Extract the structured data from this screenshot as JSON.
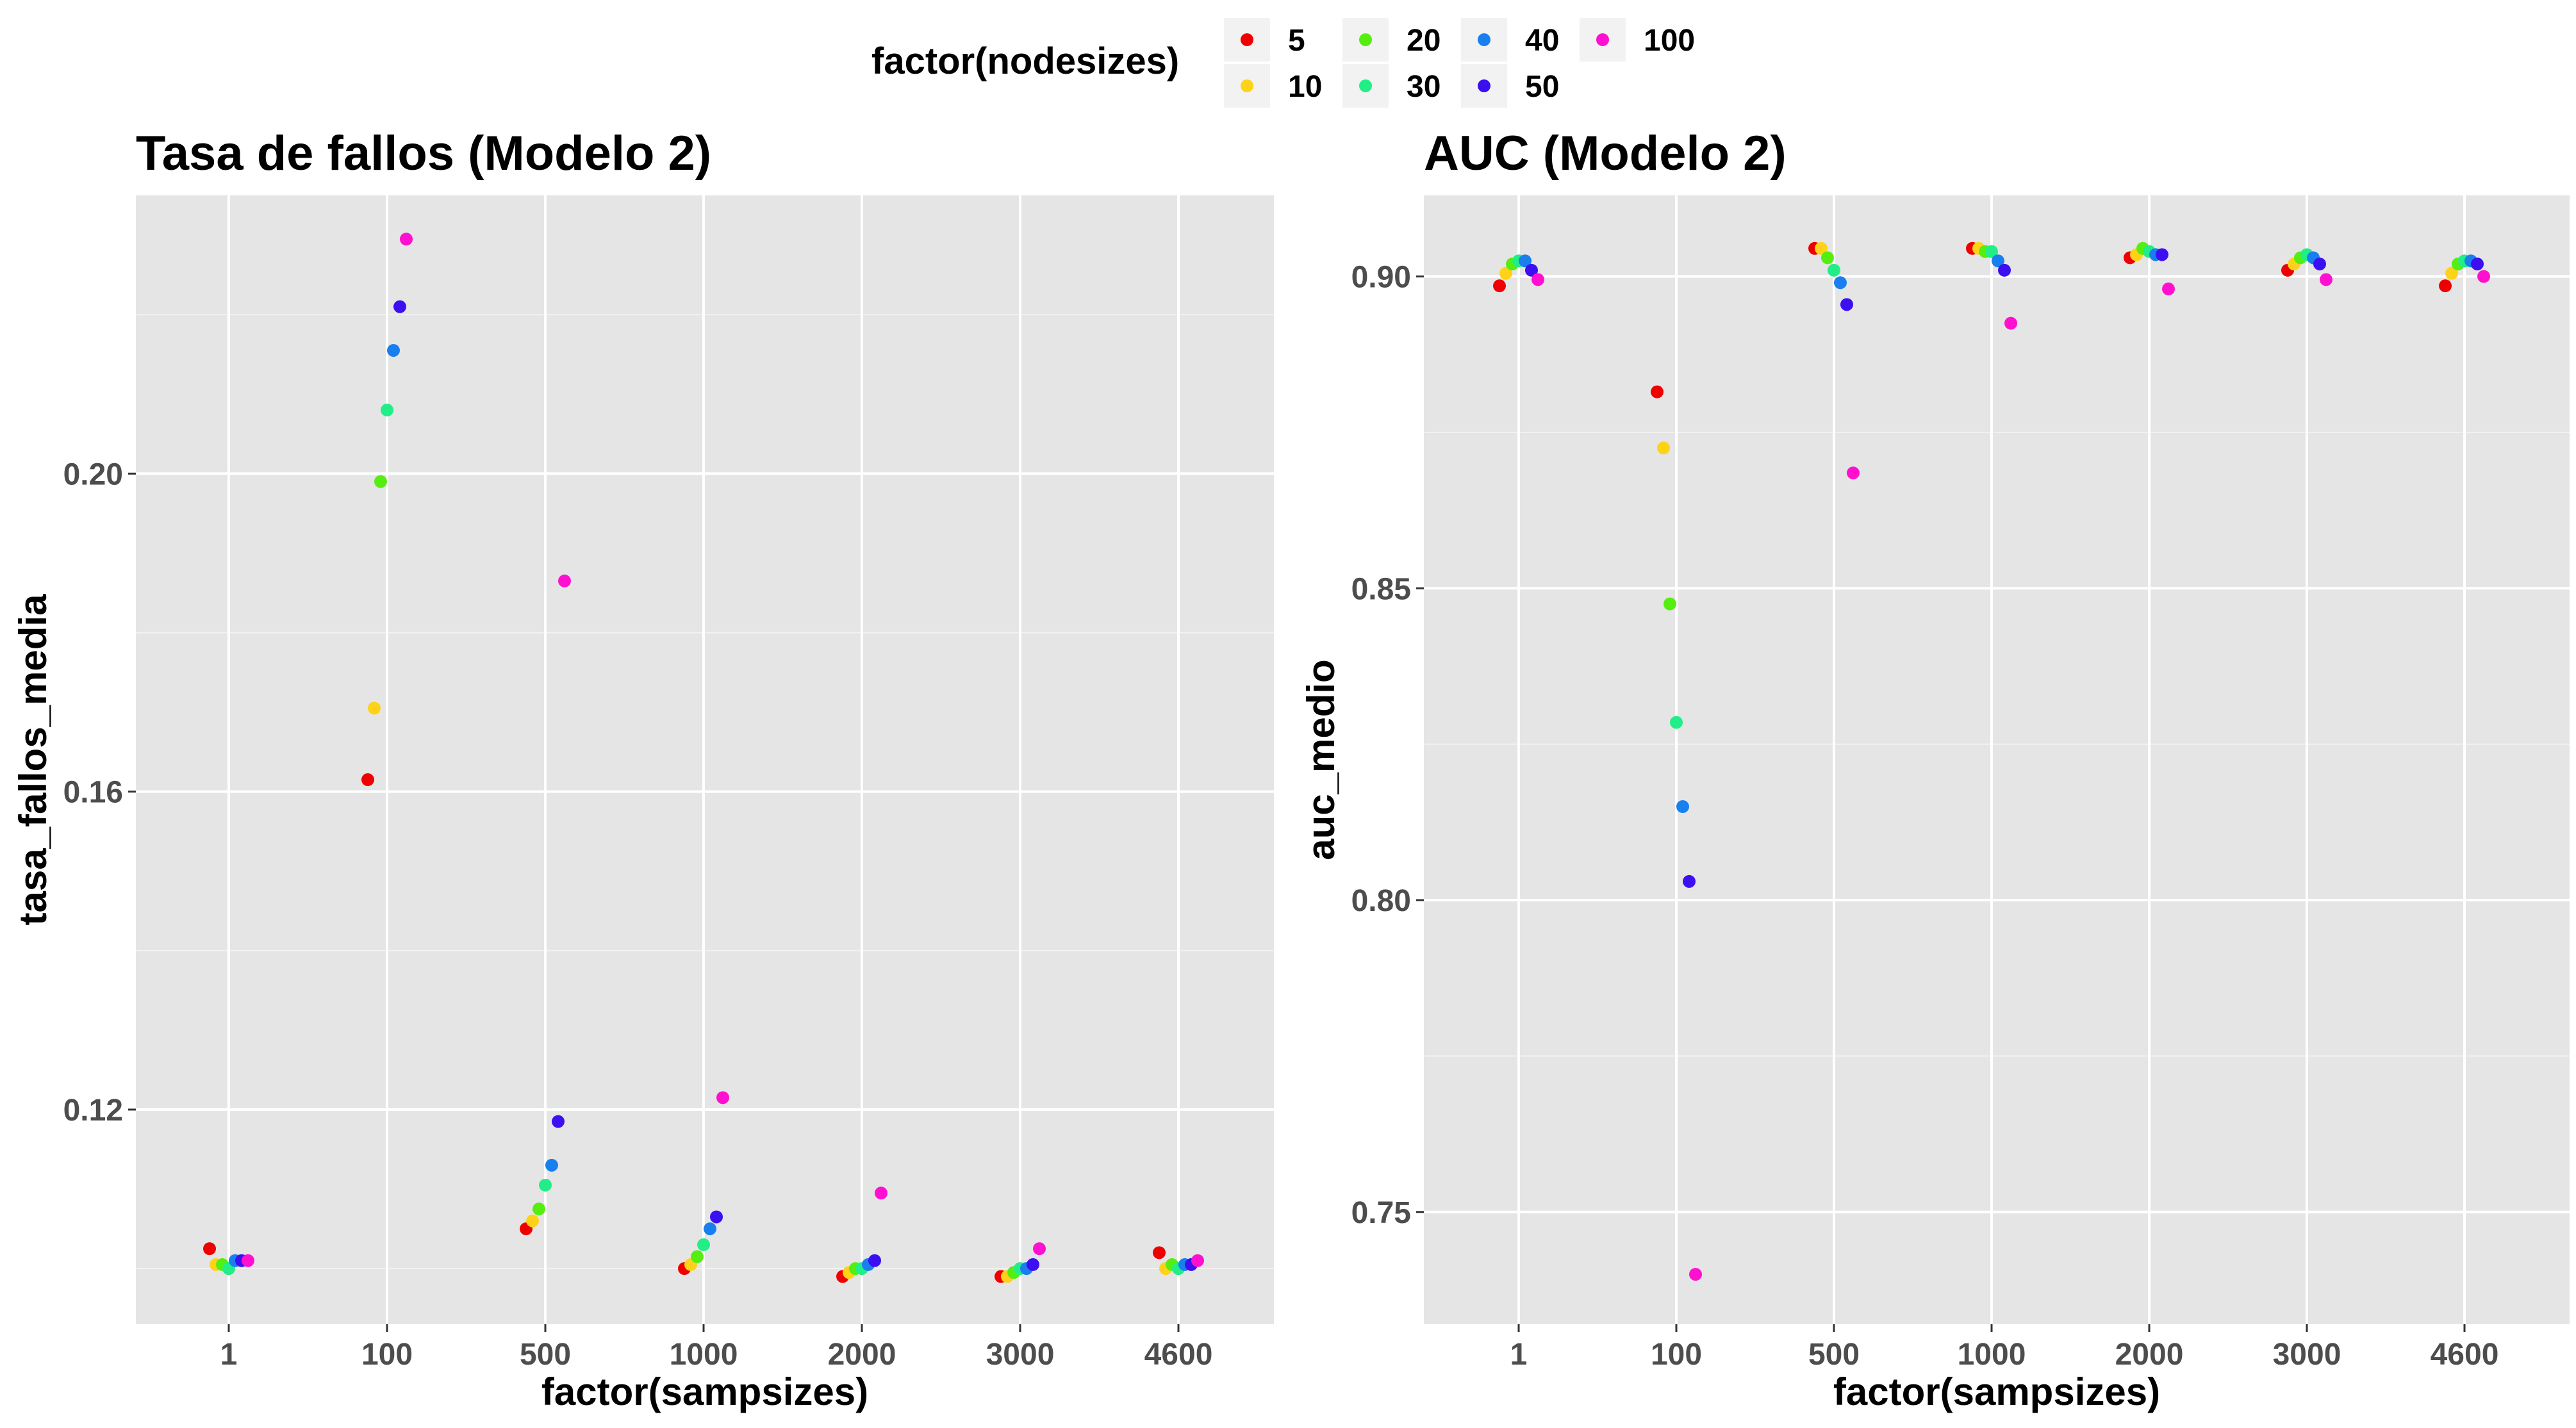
{
  "legend": {
    "title": "factor(nodesizes)",
    "items": [
      {
        "label": "5",
        "color": "#ee0000"
      },
      {
        "label": "10",
        "color": "#ffd21a"
      },
      {
        "label": "20",
        "color": "#55ee10"
      },
      {
        "label": "30",
        "color": "#22ee88"
      },
      {
        "label": "40",
        "color": "#1a7fee"
      },
      {
        "label": "50",
        "color": "#3c0ff0"
      },
      {
        "label": "100",
        "color": "#ff10d0"
      }
    ]
  },
  "chart_data": [
    {
      "type": "scatter",
      "title": "Tasa de fallos (Modelo 2)",
      "xlabel": "factor(sampsizes)",
      "ylabel": "tasa_fallos_media",
      "categories": [
        "1",
        "100",
        "500",
        "1000",
        "2000",
        "3000",
        "4600"
      ],
      "yticks": [
        0.12,
        0.16,
        0.2
      ],
      "ylim": [
        0.093,
        0.235
      ],
      "grid": true,
      "series": [
        {
          "name": "5",
          "values": [
            0.1025,
            0.1615,
            0.105,
            0.1,
            0.099,
            0.099,
            0.102
          ]
        },
        {
          "name": "10",
          "values": [
            0.1005,
            0.1705,
            0.106,
            0.1005,
            0.0995,
            0.099,
            0.1
          ]
        },
        {
          "name": "20",
          "values": [
            0.1005,
            0.199,
            0.1075,
            0.1015,
            0.1,
            0.0995,
            0.1005
          ]
        },
        {
          "name": "30",
          "values": [
            0.1,
            0.208,
            0.1105,
            0.103,
            0.1,
            0.1,
            0.1
          ]
        },
        {
          "name": "40",
          "values": [
            0.101,
            0.2155,
            0.113,
            0.105,
            0.1005,
            0.1,
            0.1005
          ]
        },
        {
          "name": "50",
          "values": [
            0.101,
            0.221,
            0.1185,
            0.1065,
            0.101,
            0.1005,
            0.1005
          ]
        },
        {
          "name": "100",
          "values": [
            0.101,
            0.2295,
            0.1865,
            0.1215,
            0.1095,
            0.1025,
            0.101
          ]
        }
      ]
    },
    {
      "type": "scatter",
      "title": "AUC (Modelo 2)",
      "xlabel": "factor(sampsizes)",
      "ylabel": "auc_medio",
      "categories": [
        "1",
        "100",
        "500",
        "1000",
        "2000",
        "3000",
        "4600"
      ],
      "yticks": [
        0.75,
        0.8,
        0.85,
        0.9
      ],
      "ylim": [
        0.732,
        0.913
      ],
      "grid": true,
      "series": [
        {
          "name": "5",
          "values": [
            0.8985,
            0.8815,
            0.9045,
            0.9045,
            0.903,
            0.901,
            0.8985
          ]
        },
        {
          "name": "10",
          "values": [
            0.9005,
            0.8725,
            0.9045,
            0.9045,
            0.9035,
            0.902,
            0.9005
          ]
        },
        {
          "name": "20",
          "values": [
            0.902,
            0.8475,
            0.903,
            0.904,
            0.9045,
            0.903,
            0.902
          ]
        },
        {
          "name": "30",
          "values": [
            0.9025,
            0.8285,
            0.901,
            0.904,
            0.904,
            0.9035,
            0.9025
          ]
        },
        {
          "name": "40",
          "values": [
            0.9025,
            0.815,
            0.899,
            0.9025,
            0.9035,
            0.903,
            0.9025
          ]
        },
        {
          "name": "50",
          "values": [
            0.901,
            0.803,
            0.8955,
            0.901,
            0.9035,
            0.902,
            0.902
          ]
        },
        {
          "name": "100",
          "values": [
            0.8995,
            0.74,
            0.8685,
            0.8925,
            0.898,
            0.8995,
            0.9
          ]
        }
      ]
    }
  ]
}
